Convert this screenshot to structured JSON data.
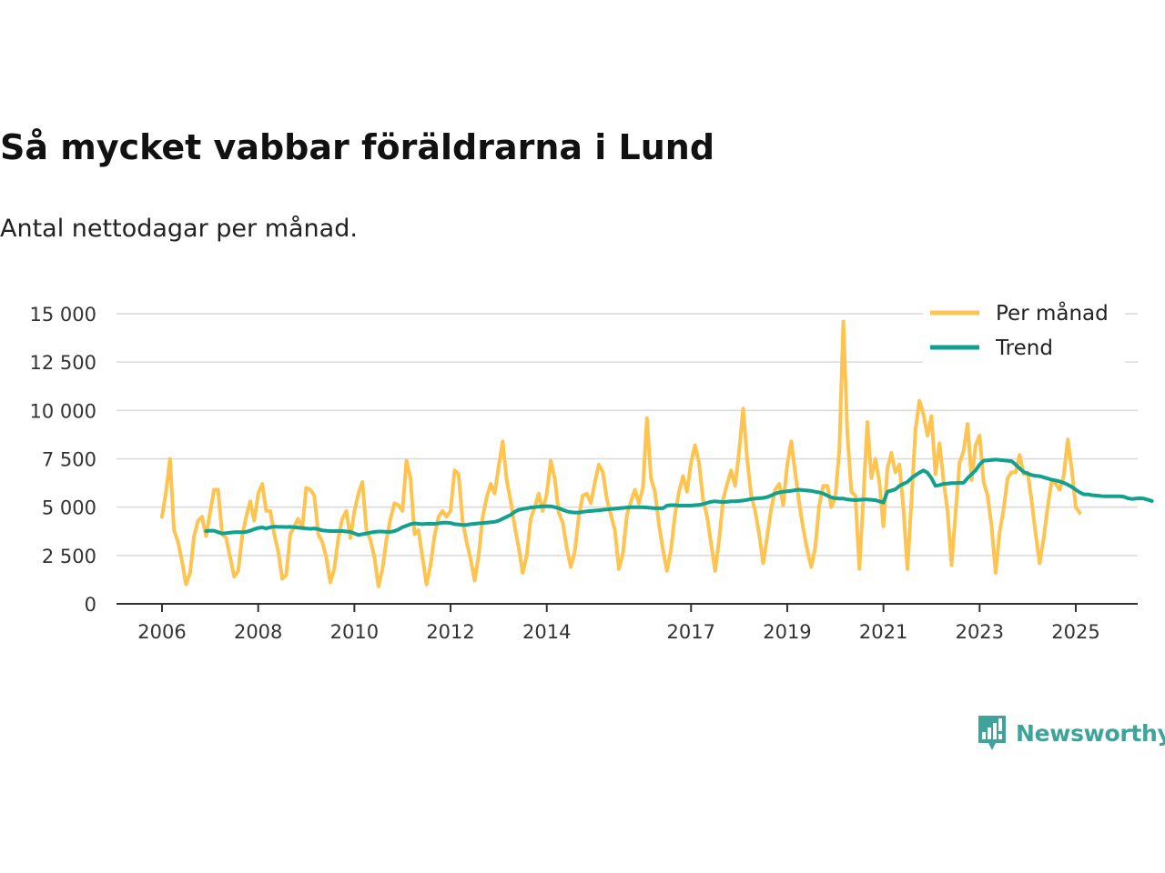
{
  "title": "Så mycket vabbar föräldrarna i Lund",
  "subtitle": "Antal nettodagar per månad.",
  "brand": {
    "name": "Newsworthy",
    "icon": "newsworthy-logo-icon"
  },
  "colors": {
    "monthly": "#FEC44F",
    "trend": "#12A08F",
    "grid": "#D9D9D9",
    "axis": "#333333",
    "brand": "#3FA39A"
  },
  "chart_data": {
    "type": "line",
    "title": "Så mycket vabbar föräldrarna i Lund",
    "subtitle": "Antal nettodagar per månad.",
    "xlabel": "",
    "ylabel": "",
    "xlim": [
      2005.5,
      2026.3
    ],
    "ylim": [
      0,
      15000
    ],
    "y_ticks": [
      0,
      2500,
      5000,
      7500,
      10000,
      12500,
      15000
    ],
    "y_tick_labels": [
      "0",
      "2 500",
      "5 000",
      "7 500",
      "10 000",
      "12 500",
      "15 000"
    ],
    "x_ticks": [
      2006,
      2008,
      2010,
      2012,
      2014,
      2017,
      2019,
      2021,
      2023,
      2025
    ],
    "x_tick_labels": [
      "2006",
      "2008",
      "2010",
      "2012",
      "2014",
      "2017",
      "2019",
      "2021",
      "2023",
      "2025"
    ],
    "grid": true,
    "legend_position": "top-right",
    "series": [
      {
        "name": "Per månad",
        "color": "#FEC44F",
        "start": 2006.0,
        "step": 0.08333,
        "values": [
          4500,
          5800,
          7500,
          3800,
          3200,
          2200,
          1000,
          1600,
          3500,
          4300,
          4500,
          3500,
          4700,
          5900,
          5900,
          3600,
          3400,
          2400,
          1400,
          1700,
          3500,
          4500,
          5300,
          4300,
          5700,
          6200,
          4800,
          4800,
          3600,
          2700,
          1300,
          1500,
          3600,
          4000,
          4400,
          3900,
          6000,
          5900,
          5600,
          3600,
          3200,
          2400,
          1100,
          1800,
          3400,
          4400,
          4800,
          3400,
          4800,
          5700,
          6300,
          3800,
          3300,
          2400,
          900,
          1800,
          3300,
          4400,
          5200,
          5100,
          4800,
          7400,
          6500,
          3600,
          3800,
          2400,
          1000,
          2000,
          3500,
          4500,
          4800,
          4500,
          4800,
          6900,
          6700,
          4300,
          3200,
          2300,
          1200,
          2500,
          4500,
          5500,
          6200,
          5700,
          7100,
          8400,
          6400,
          5300,
          4000,
          2900,
          1600,
          2500,
          4400,
          5000,
          5700,
          4800,
          5700,
          7400,
          6500,
          4700,
          4200,
          2900,
          1900,
          2700,
          4500,
          5600,
          5700,
          5200,
          6300,
          7200,
          6800,
          5400,
          4600,
          3800,
          1800,
          2600,
          4600,
          5300,
          5900,
          5200,
          6000,
          9600,
          6500,
          5800,
          4100,
          2800,
          1700,
          2800,
          4600,
          5800,
          6600,
          5800,
          7300,
          8200,
          7300,
          5400,
          4500,
          3100,
          1700,
          3300,
          5400,
          6200,
          6900,
          6100,
          7900,
          10100,
          7500,
          5600,
          4800,
          3600,
          2100,
          3500,
          4900,
          5900,
          6200,
          5100,
          7200,
          8400,
          6800,
          5200,
          3900,
          2800,
          1900,
          2900,
          5100,
          6100,
          6100,
          5000,
          5500,
          8000,
          14600,
          8800,
          5800,
          5600,
          1800,
          5500,
          9400,
          6500,
          7500,
          6300,
          4000,
          7000,
          7800,
          6800,
          7200,
          4900,
          1800,
          5300,
          9000,
          10500,
          9800,
          8700,
          9700,
          6700,
          8300,
          6400,
          4800,
          2000,
          4700,
          7300,
          7900,
          9300,
          6400,
          8200,
          8700,
          6300,
          5600,
          4000,
          1600,
          3700,
          4900,
          6500,
          6800,
          6800,
          7700,
          6700,
          6800,
          5300,
          3600,
          2100,
          3400,
          5000,
          6400,
          6200,
          5900,
          6600,
          8500,
          6900,
          5000,
          4700
        ]
      },
      {
        "name": "Trend",
        "color": "#12A08F",
        "start": 2006.9167,
        "step": 0.08333,
        "values": [
          3760,
          3780,
          3780,
          3700,
          3640,
          3660,
          3680,
          3700,
          3710,
          3700,
          3720,
          3780,
          3860,
          3920,
          3950,
          3900,
          3960,
          3990,
          3980,
          3980,
          3970,
          3980,
          3960,
          3940,
          3920,
          3900,
          3880,
          3900,
          3860,
          3800,
          3780,
          3760,
          3760,
          3760,
          3760,
          3740,
          3720,
          3640,
          3560,
          3600,
          3640,
          3680,
          3720,
          3740,
          3740,
          3720,
          3720,
          3760,
          3840,
          3960,
          4040,
          4120,
          4160,
          4140,
          4120,
          4140,
          4140,
          4140,
          4160,
          4200,
          4200,
          4180,
          4120,
          4100,
          4080,
          4080,
          4120,
          4140,
          4160,
          4180,
          4200,
          4220,
          4240,
          4300,
          4400,
          4500,
          4600,
          4760,
          4860,
          4900,
          4940,
          4980,
          5000,
          5020,
          5040,
          5040,
          5040,
          5000,
          4940,
          4860,
          4780,
          4740,
          4720,
          4720,
          4760,
          4780,
          4800,
          4820,
          4840,
          4860,
          4880,
          4900,
          4920,
          4940,
          4960,
          4980,
          5000,
          5000,
          5000,
          5000,
          4980,
          4960,
          4940,
          4940,
          4940,
          5080,
          5100,
          5100,
          5080,
          5080,
          5080,
          5080,
          5100,
          5120,
          5160,
          5220,
          5280,
          5300,
          5280,
          5260,
          5280,
          5300,
          5300,
          5320,
          5340,
          5380,
          5420,
          5440,
          5460,
          5480,
          5520,
          5600,
          5700,
          5760,
          5800,
          5820,
          5840,
          5880,
          5900,
          5880,
          5860,
          5840,
          5800,
          5760,
          5700,
          5600,
          5500,
          5460,
          5440,
          5440,
          5400,
          5380,
          5360,
          5380,
          5400,
          5400,
          5380,
          5360,
          5300,
          5240,
          5800,
          5860,
          5920,
          6100,
          6200,
          6300,
          6500,
          6650,
          6780,
          6900,
          6780,
          6500,
          6100,
          6140,
          6200,
          6220,
          6240,
          6240,
          6260,
          6260,
          6500,
          6700,
          6900,
          7200,
          7400,
          7420,
          7440,
          7460,
          7440,
          7420,
          7400,
          7380,
          7200,
          7000,
          6820,
          6740,
          6660,
          6620,
          6600,
          6540,
          6480,
          6420,
          6380,
          6320,
          6260,
          6160,
          6040,
          5900,
          5760,
          5660,
          5660,
          5620,
          5600,
          5580,
          5560,
          5560,
          5560,
          5560,
          5560,
          5540,
          5460,
          5420,
          5440,
          5460,
          5440,
          5380,
          5320
        ]
      }
    ]
  }
}
